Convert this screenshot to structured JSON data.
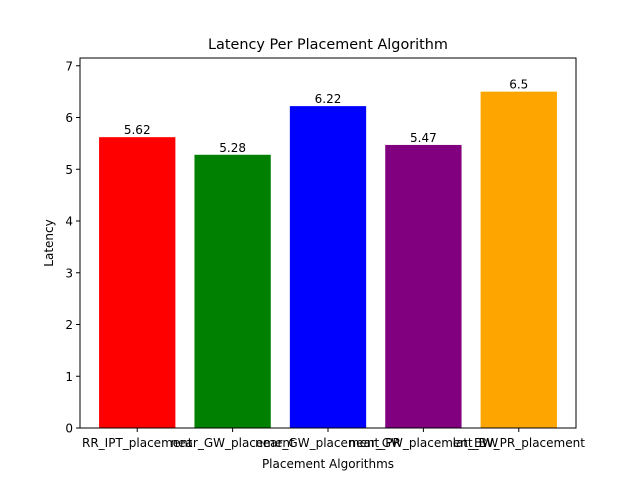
{
  "chart_data": {
    "type": "bar",
    "title": "Latency Per Placement Algorithm",
    "xlabel": "Placement Algorithms",
    "ylabel": "Latency",
    "categories": [
      "RR_IPT_placement",
      "near_GW_placement",
      "near_GW_placement_PR",
      "near_GW_placement_BW",
      "lat_BW_PR_placement"
    ],
    "values": [
      5.62,
      5.28,
      6.22,
      5.47,
      6.5
    ],
    "value_labels": [
      "5.62",
      "5.28",
      "6.22",
      "5.47",
      "6.5"
    ],
    "colors": [
      "#ff0000",
      "#008000",
      "#0000ff",
      "#800080",
      "#ffa500"
    ],
    "ylim": [
      0,
      7.15
    ],
    "yticks": [
      0,
      1,
      2,
      3,
      4,
      5,
      6,
      7
    ],
    "grid": false,
    "legend": "none"
  }
}
